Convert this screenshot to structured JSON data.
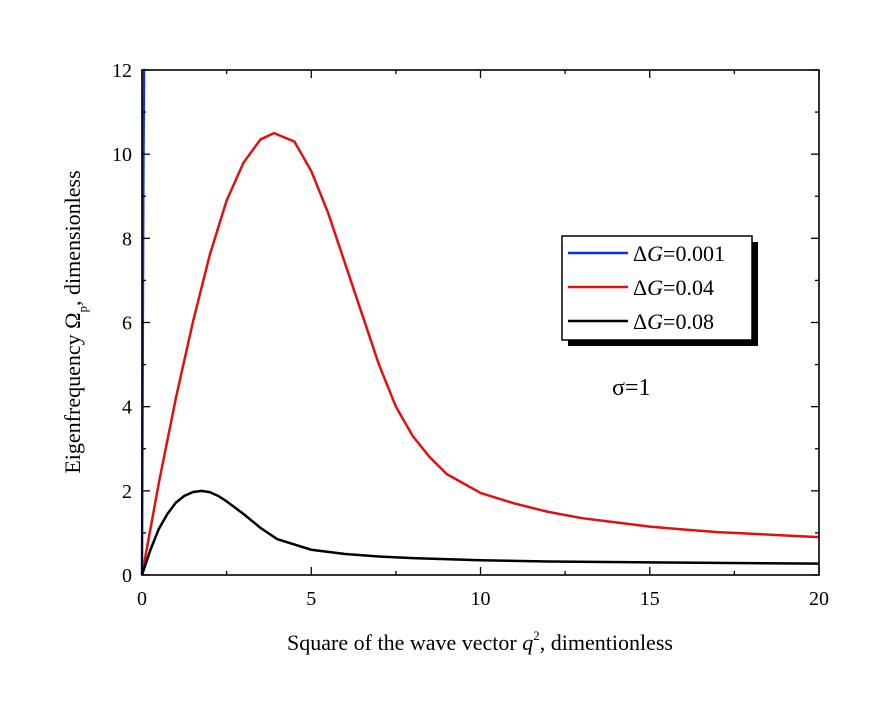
{
  "chart_data": {
    "type": "line",
    "title": "",
    "xlabel": {
      "prefix": "Square of the wave vector ",
      "var": "q",
      "sup": "2",
      "suffix": ", dimentionless"
    },
    "ylabel": {
      "prefix": "Eigenfrequency ",
      "var": "Ω",
      "sub": "p",
      "suffix": ", dimensionless"
    },
    "xlim": [
      0,
      20
    ],
    "ylim": [
      0,
      12
    ],
    "xticks": [
      "0",
      "5",
      "10",
      "15",
      "20"
    ],
    "yticks": [
      "0",
      "2",
      "4",
      "6",
      "8",
      "10",
      "12"
    ],
    "grid": false,
    "legend_position": "right",
    "annotation": "σ=1",
    "series": [
      {
        "name": "ΔG=0.001",
        "delta": "Δ",
        "var": "G",
        "value": "=0.001",
        "color": "#1030d0",
        "x": [
          0,
          0.02,
          0.04,
          0.06,
          0.08,
          0.1
        ],
        "y": [
          0,
          5,
          9.5,
          12,
          12,
          12
        ]
      },
      {
        "name": "ΔG=0.04",
        "delta": "Δ",
        "var": "G",
        "value": "=0.04",
        "color": "#e01010",
        "x": [
          0,
          0.5,
          1,
          1.5,
          2,
          2.5,
          3,
          3.5,
          3.9,
          4.5,
          5,
          5.5,
          6,
          6.5,
          7,
          7.5,
          8,
          8.5,
          9,
          10,
          11,
          12,
          13,
          14,
          15,
          16,
          17,
          18,
          19,
          20
        ],
        "y": [
          0,
          2.2,
          4.2,
          6.0,
          7.6,
          8.9,
          9.8,
          10.35,
          10.5,
          10.3,
          9.6,
          8.6,
          7.4,
          6.2,
          5.0,
          4.0,
          3.3,
          2.8,
          2.4,
          1.95,
          1.7,
          1.5,
          1.35,
          1.25,
          1.15,
          1.08,
          1.02,
          0.98,
          0.94,
          0.9
        ]
      },
      {
        "name": "ΔG=0.08",
        "delta": "Δ",
        "var": "G",
        "value": "=0.08",
        "color": "#000000",
        "x": [
          0,
          0.25,
          0.5,
          0.75,
          1,
          1.25,
          1.5,
          1.75,
          2,
          2.25,
          2.5,
          3,
          3.5,
          4,
          5,
          6,
          7,
          8,
          10,
          12,
          15,
          20
        ],
        "y": [
          0,
          0.6,
          1.1,
          1.45,
          1.72,
          1.88,
          1.97,
          2.0,
          1.97,
          1.88,
          1.75,
          1.45,
          1.12,
          0.85,
          0.6,
          0.5,
          0.44,
          0.4,
          0.35,
          0.32,
          0.3,
          0.27
        ]
      }
    ]
  }
}
